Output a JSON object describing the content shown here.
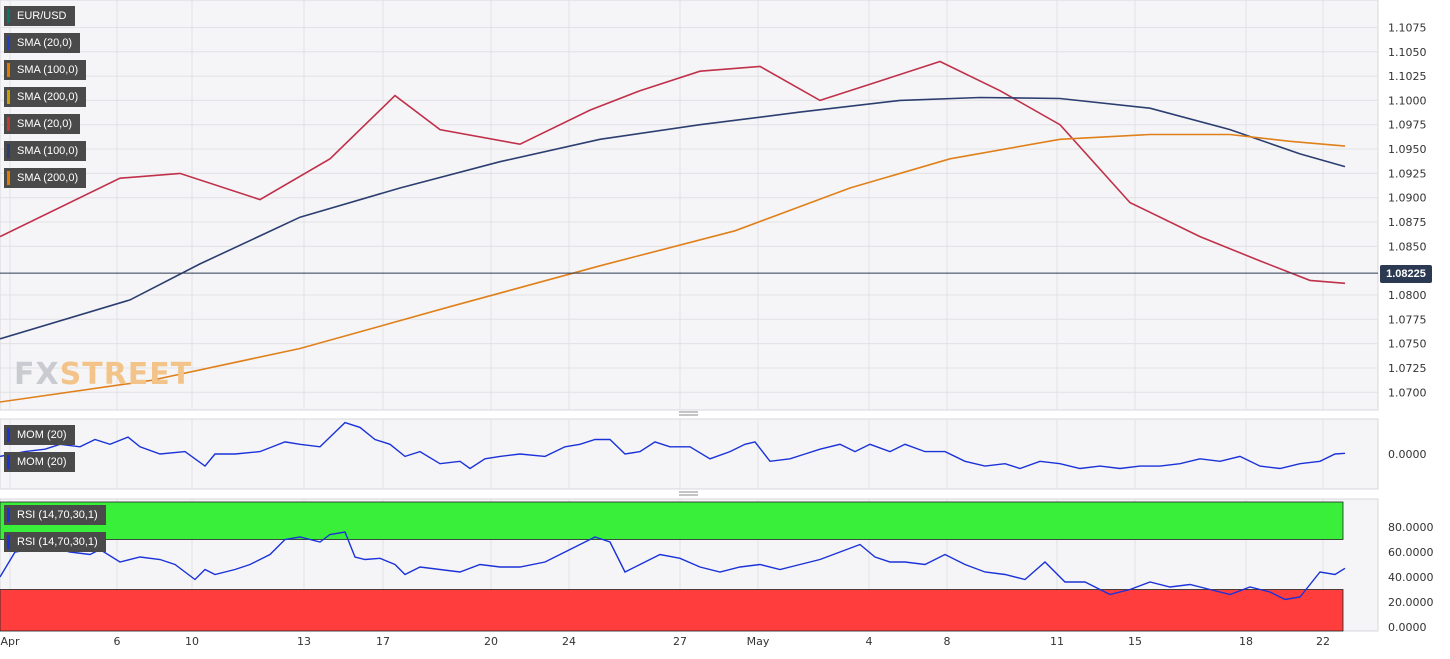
{
  "chart_data": {
    "type": "candlestick",
    "symbol": "EUR/USD",
    "last_price": "1.08225",
    "main_panel": {
      "y_ticks": [
        "1.1075",
        "1.1050",
        "1.1025",
        "1.1000",
        "1.0975",
        "1.0950",
        "1.0925",
        "1.0900",
        "1.0875",
        "1.0850",
        "1.0800",
        "1.0775",
        "1.0750",
        "1.0725",
        "1.0700"
      ],
      "y_tick_values": [
        1.1075,
        1.105,
        1.1025,
        1.1,
        1.0975,
        1.095,
        1.0925,
        1.09,
        1.0875,
        1.085,
        1.08,
        1.0775,
        1.075,
        1.0725,
        1.07
      ],
      "ylim": [
        1.069,
        1.1095
      ],
      "last_value": 1.08225,
      "legend": [
        {
          "label": "EUR/USD",
          "color": "#00796b"
        },
        {
          "label": "SMA (20,0)",
          "color": "#1e40c8"
        },
        {
          "label": "SMA (100,0)",
          "color": "#e07b00"
        },
        {
          "label": "SMA (200,0)",
          "color": "#c8a000"
        },
        {
          "label": "SMA (20,0)",
          "color": "#c0392b"
        },
        {
          "label": "SMA (100,0)",
          "color": "#2c3e70"
        },
        {
          "label": "SMA (200,0)",
          "color": "#e07b00"
        }
      ],
      "series": [
        {
          "name": "SMA (20,0)",
          "color": "#c0304a",
          "x": [
            0,
            120,
            180,
            260,
            330,
            395,
            440,
            520,
            590,
            640,
            700,
            760,
            820,
            880,
            940,
            1000,
            1060,
            1130,
            1200,
            1260,
            1310,
            1345
          ],
          "values": [
            1.086,
            1.092,
            1.0925,
            1.0898,
            1.094,
            1.1005,
            1.097,
            1.0955,
            1.099,
            1.101,
            1.103,
            1.1035,
            1.1,
            1.102,
            1.104,
            1.101,
            1.0975,
            1.0895,
            1.086,
            1.0835,
            1.0815,
            1.0812
          ]
        },
        {
          "name": "SMA (100,0)",
          "color": "#2c3e70",
          "x": [
            0,
            130,
            200,
            300,
            400,
            500,
            600,
            700,
            800,
            900,
            980,
            1060,
            1150,
            1230,
            1300,
            1345
          ],
          "values": [
            1.0755,
            1.0795,
            1.0832,
            1.088,
            1.091,
            1.0937,
            1.096,
            1.0975,
            1.0988,
            1.1,
            1.1003,
            1.1002,
            1.0992,
            1.097,
            1.0945,
            1.0932
          ]
        },
        {
          "name": "SMA (200,0)",
          "color": "#e0801a",
          "x": [
            0,
            150,
            300,
            450,
            600,
            735,
            850,
            950,
            1060,
            1150,
            1230,
            1290,
            1345
          ],
          "values": [
            1.069,
            1.0712,
            1.0745,
            1.0788,
            1.083,
            1.0866,
            1.091,
            1.094,
            1.096,
            1.0965,
            1.0965,
            1.0958,
            1.0953
          ]
        }
      ]
    },
    "x_axis": {
      "labels": [
        "Apr",
        "6",
        "10",
        "13",
        "17",
        "20",
        "24",
        "27",
        "May",
        "4",
        "8",
        "11",
        "15",
        "18",
        "22"
      ],
      "label_x": [
        10,
        117,
        192,
        304,
        383,
        491,
        569,
        680,
        758,
        869,
        947,
        1057,
        1135,
        1246,
        1323
      ]
    },
    "mom_panel": {
      "legend": [
        "MOM (20)",
        "MOM (20)"
      ],
      "y_ticks": [
        "0.0000"
      ],
      "y_tick_values": [
        0
      ],
      "ylim": [
        -0.012,
        0.012
      ],
      "color": "#1a32d8",
      "x": [
        0,
        25,
        45,
        60,
        80,
        95,
        110,
        128,
        140,
        160,
        185,
        205,
        215,
        235,
        260,
        285,
        300,
        320,
        335,
        345,
        360,
        375,
        390,
        405,
        420,
        440,
        460,
        470,
        485,
        500,
        520,
        545,
        565,
        580,
        595,
        610,
        625,
        640,
        655,
        670,
        690,
        710,
        730,
        745,
        755,
        770,
        790,
        805,
        820,
        840,
        855,
        870,
        890,
        905,
        925,
        945,
        965,
        985,
        1005,
        1020,
        1040,
        1060,
        1080,
        1100,
        1120,
        1140,
        1160,
        1180,
        1200,
        1220,
        1240,
        1260,
        1280,
        1300,
        1320,
        1335,
        1345
      ],
      "values": [
        -0.001,
        0.001,
        0.002,
        0.004,
        0.003,
        0.006,
        0.004,
        0.007,
        0.003,
        0.0,
        0.001,
        -0.005,
        0.0,
        0.0,
        0.001,
        0.005,
        0.004,
        0.003,
        0.009,
        0.013,
        0.011,
        0.006,
        0.004,
        -0.001,
        0.001,
        -0.004,
        -0.003,
        -0.006,
        -0.002,
        -0.001,
        0.0,
        -0.001,
        0.003,
        0.004,
        0.006,
        0.006,
        0.0,
        0.001,
        0.005,
        0.003,
        0.003,
        -0.002,
        0.001,
        0.004,
        0.005,
        -0.003,
        -0.002,
        0.0,
        0.002,
        0.004,
        0.001,
        0.004,
        0.001,
        0.004,
        0.001,
        0.001,
        -0.003,
        -0.005,
        -0.004,
        -0.006,
        -0.003,
        -0.004,
        -0.006,
        -0.005,
        -0.006,
        -0.005,
        -0.005,
        -0.004,
        -0.002,
        -0.003,
        -0.001,
        -0.005,
        -0.006,
        -0.004,
        -0.003,
        0.0,
        0.0003
      ]
    },
    "rsi_panel": {
      "legend": [
        "RSI (14,70,30,1)",
        "RSI (14,70,30,1)"
      ],
      "y_ticks": [
        "80.0000",
        "60.0000",
        "40.0000",
        "20.0000",
        "0.0000"
      ],
      "y_tick_values": [
        80,
        60,
        40,
        20,
        0
      ],
      "ylim": [
        0,
        100
      ],
      "overbought": 70,
      "oversold": 30,
      "color": "#1a32d8",
      "overbought_color": "#39ef39",
      "oversold_color": "#ff3d3d",
      "x": [
        0,
        15,
        30,
        50,
        70,
        90,
        100,
        120,
        140,
        160,
        175,
        195,
        205,
        215,
        235,
        250,
        270,
        285,
        300,
        320,
        330,
        345,
        355,
        365,
        380,
        395,
        405,
        420,
        440,
        460,
        480,
        500,
        520,
        545,
        565,
        580,
        595,
        610,
        625,
        640,
        660,
        680,
        700,
        720,
        740,
        760,
        780,
        800,
        820,
        840,
        860,
        875,
        890,
        905,
        925,
        945,
        965,
        985,
        1005,
        1025,
        1045,
        1065,
        1085,
        1110,
        1130,
        1150,
        1170,
        1190,
        1210,
        1230,
        1250,
        1270,
        1285,
        1300,
        1320,
        1335,
        1345
      ],
      "values": [
        40,
        60,
        62,
        64,
        60,
        58,
        62,
        52,
        56,
        54,
        50,
        38,
        46,
        42,
        46,
        50,
        58,
        70,
        72,
        68,
        74,
        76,
        56,
        54,
        55,
        50,
        42,
        48,
        46,
        44,
        50,
        48,
        48,
        52,
        60,
        66,
        72,
        68,
        44,
        50,
        58,
        55,
        48,
        44,
        48,
        50,
        46,
        50,
        54,
        60,
        66,
        56,
        52,
        52,
        50,
        58,
        50,
        44,
        42,
        38,
        52,
        36,
        36,
        26,
        30,
        36,
        32,
        34,
        30,
        26,
        32,
        28,
        22,
        24,
        44,
        42,
        47
      ]
    }
  }
}
